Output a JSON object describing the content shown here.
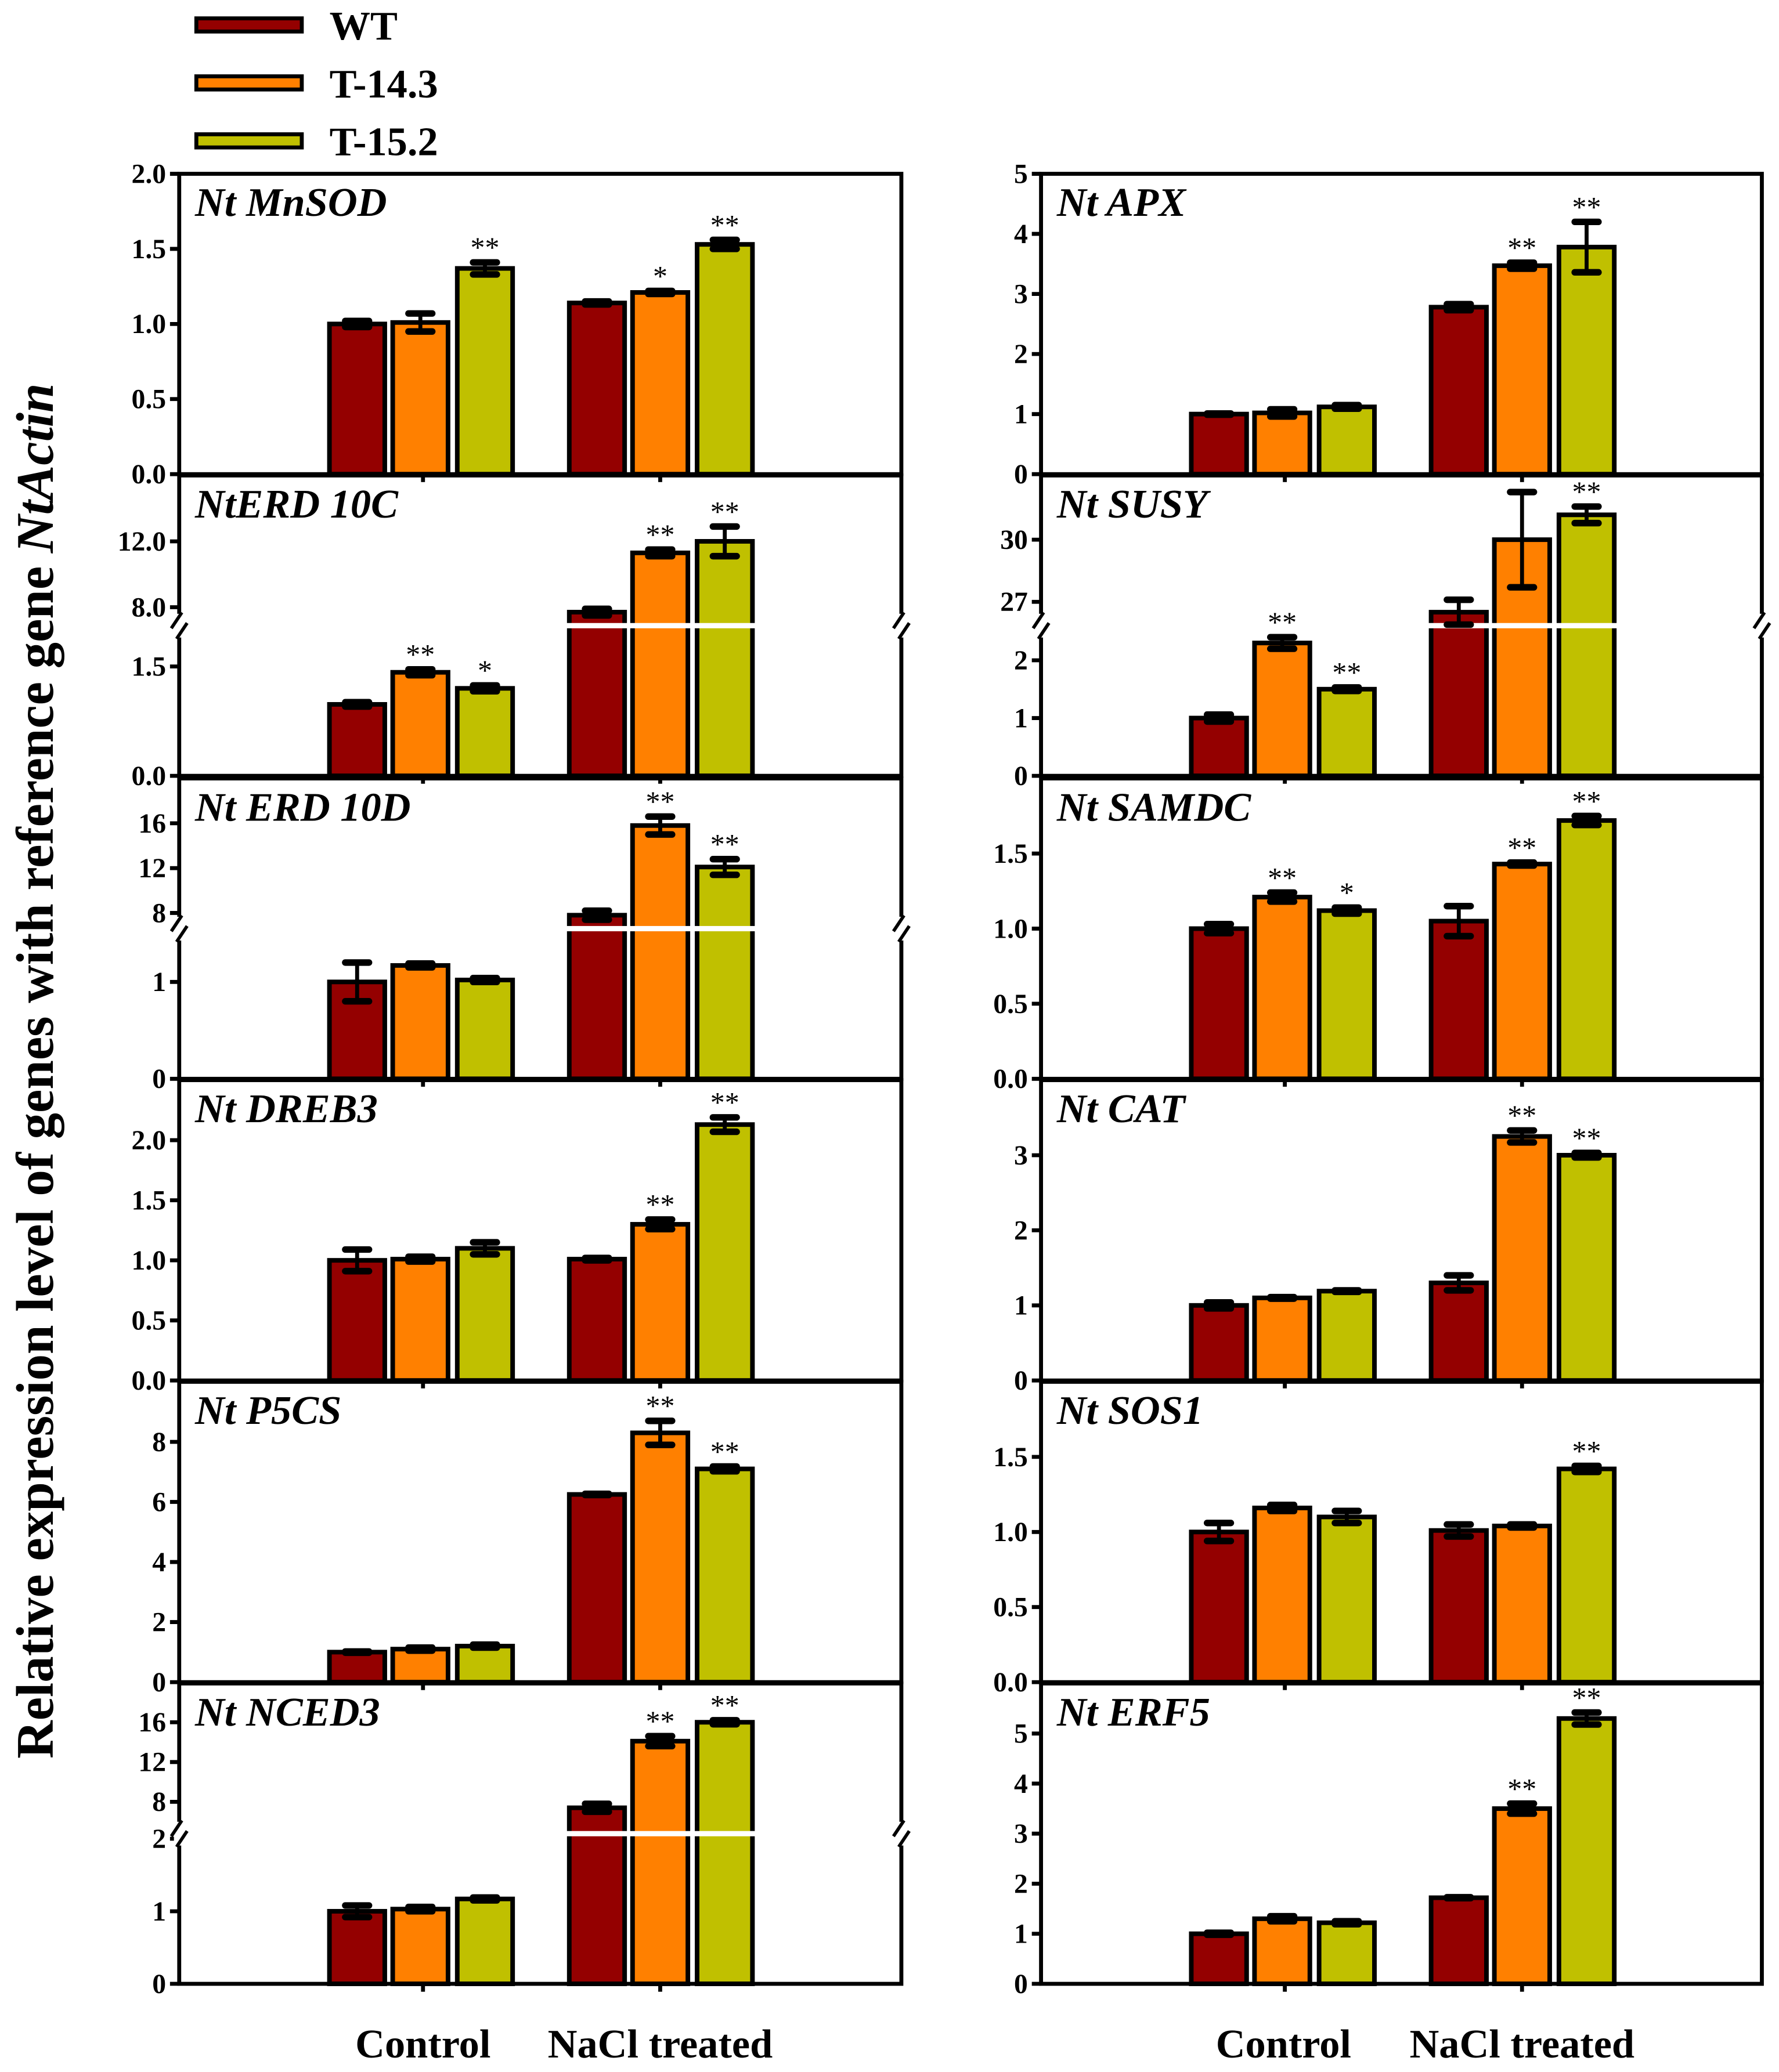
{
  "chart_data": {
    "type": "bar",
    "ylabel": "Relative expression level of genes with reference gene",
    "ylabel_italic": "NtActin",
    "categories": [
      "Control",
      "NaCl treated"
    ],
    "legend": {
      "placement": "top-left",
      "entries": [
        "WT",
        "T-14.3",
        "T-15.2"
      ]
    },
    "series_colors": [
      "#940000",
      "#ff8000",
      "#c0c000"
    ],
    "panels": [
      {
        "title": "Nt MnSOD",
        "column": "left",
        "ylim": [
          0,
          2
        ],
        "ticks": [
          {
            "v": 0,
            "label": "0.0"
          },
          {
            "v": 0.5,
            "label": "0.5"
          },
          {
            "v": 1,
            "label": "1.0"
          },
          {
            "v": 1.5,
            "label": "1.5"
          },
          {
            "v": 2,
            "label": "2.0"
          }
        ],
        "values": [
          [
            1.0,
            1.01,
            1.37
          ],
          [
            1.14,
            1.21,
            1.53
          ]
        ],
        "errors": [
          [
            0.02,
            0.06,
            0.04
          ],
          [
            0.01,
            0.01,
            0.03
          ]
        ],
        "sig": [
          [
            "",
            "",
            "**"
          ],
          [
            "",
            "*",
            "**"
          ]
        ]
      },
      {
        "title": "NtERD 10C",
        "column": "left",
        "axis_break": {
          "lower": [
            0,
            2.06
          ],
          "upper": [
            6.88,
            16
          ]
        },
        "ticks": [
          {
            "v": 0,
            "label": "0.0"
          },
          {
            "v": 1.5,
            "label": "1.5"
          },
          {
            "v": 8,
            "label": "8.0"
          },
          {
            "v": 12,
            "label": "12.0"
          }
        ],
        "values": [
          [
            0.98,
            1.42,
            1.2
          ],
          [
            7.7,
            11.3,
            12.0
          ]
        ],
        "errors": [
          [
            0.03,
            0.04,
            0.04
          ],
          [
            0.2,
            0.2,
            0.9
          ]
        ],
        "sig": [
          [
            "",
            "**",
            "*"
          ],
          [
            "",
            "**",
            "**"
          ]
        ]
      },
      {
        "title": "Nt ERD 10D",
        "column": "left",
        "axis_break": {
          "lower": [
            0,
            1.55
          ],
          "upper": [
            6.6,
            20
          ]
        },
        "ticks": [
          {
            "v": 0,
            "label": "0"
          },
          {
            "v": 1,
            "label": "1"
          },
          {
            "v": 8,
            "label": "8"
          },
          {
            "v": 12,
            "label": "12"
          },
          {
            "v": 16,
            "label": "16"
          }
        ],
        "values": [
          [
            1.0,
            1.17,
            1.02
          ],
          [
            7.8,
            15.8,
            12.1
          ]
        ],
        "errors": [
          [
            0.2,
            0.02,
            0.02
          ],
          [
            0.4,
            0.8,
            0.7
          ]
        ],
        "sig": [
          [
            "",
            "",
            ""
          ],
          [
            "",
            "**",
            "**"
          ]
        ]
      },
      {
        "title": "Nt DREB3",
        "column": "left",
        "ylim": [
          0,
          2.5
        ],
        "ticks": [
          {
            "v": 0,
            "label": "0.0"
          },
          {
            "v": 0.5,
            "label": "0.5"
          },
          {
            "v": 1,
            "label": "1.0"
          },
          {
            "v": 1.5,
            "label": "1.5"
          },
          {
            "v": 2,
            "label": "2.0"
          }
        ],
        "values": [
          [
            1.0,
            1.01,
            1.1
          ],
          [
            1.01,
            1.3,
            2.13
          ]
        ],
        "errors": [
          [
            0.09,
            0.02,
            0.05
          ],
          [
            0.01,
            0.04,
            0.06
          ]
        ],
        "sig": [
          [
            "",
            "",
            ""
          ],
          [
            "",
            "**",
            "**"
          ]
        ]
      },
      {
        "title": "Nt P5CS",
        "column": "left",
        "ylim": [
          0,
          10
        ],
        "ticks": [
          {
            "v": 0,
            "label": "0"
          },
          {
            "v": 2,
            "label": "2"
          },
          {
            "v": 4,
            "label": "4"
          },
          {
            "v": 6,
            "label": "6"
          },
          {
            "v": 8,
            "label": "8"
          }
        ],
        "values": [
          [
            1.0,
            1.1,
            1.2
          ],
          [
            6.25,
            8.3,
            7.1
          ]
        ],
        "errors": [
          [
            0.02,
            0.05,
            0.05
          ],
          [
            0.02,
            0.4,
            0.08
          ]
        ],
        "sig": [
          [
            "",
            "",
            ""
          ],
          [
            "",
            "**",
            "**"
          ]
        ]
      },
      {
        "title": "Nt NCED3",
        "column": "left",
        "axis_break": {
          "lower": [
            0,
            2.07
          ],
          "upper": [
            4.8,
            19.9
          ]
        },
        "ticks": [
          {
            "v": 0,
            "label": "0"
          },
          {
            "v": 1,
            "label": "1"
          },
          {
            "v": 2,
            "label": "2"
          },
          {
            "v": 8,
            "label": "8"
          },
          {
            "v": 12,
            "label": "12"
          },
          {
            "v": 16,
            "label": "16"
          }
        ],
        "values": [
          [
            1.0,
            1.03,
            1.17
          ],
          [
            7.4,
            14.1,
            16.0
          ]
        ],
        "errors": [
          [
            0.08,
            0.03,
            0.02
          ],
          [
            0.4,
            0.5,
            0.2
          ]
        ],
        "sig": [
          [
            "",
            "",
            ""
          ],
          [
            "",
            "**",
            "**"
          ]
        ]
      },
      {
        "title": "Nt APX",
        "column": "right",
        "ylim": [
          0,
          5
        ],
        "ticks": [
          {
            "v": 0,
            "label": "0"
          },
          {
            "v": 1,
            "label": "1"
          },
          {
            "v": 2,
            "label": "2"
          },
          {
            "v": 3,
            "label": "3"
          },
          {
            "v": 4,
            "label": "4"
          },
          {
            "v": 5,
            "label": "5"
          }
        ],
        "values": [
          [
            1.0,
            1.02,
            1.12
          ],
          [
            2.78,
            3.47,
            3.78
          ]
        ],
        "errors": [
          [
            0.01,
            0.06,
            0.03
          ],
          [
            0.05,
            0.05,
            0.42
          ]
        ],
        "sig": [
          [
            "",
            "",
            ""
          ],
          [
            "",
            "**",
            "**"
          ]
        ]
      },
      {
        "title": "Nt SUSY",
        "column": "right",
        "axis_break": {
          "lower": [
            0,
            2.6
          ],
          "upper": [
            25.85,
            33.1
          ]
        },
        "ticks": [
          {
            "v": 0,
            "label": "0"
          },
          {
            "v": 1,
            "label": "1"
          },
          {
            "v": 2,
            "label": "2"
          },
          {
            "v": 27,
            "label": "27"
          },
          {
            "v": 30,
            "label": "30"
          }
        ],
        "values": [
          [
            1.0,
            2.3,
            1.5
          ],
          [
            26.5,
            30.0,
            31.2
          ]
        ],
        "errors": [
          [
            0.06,
            0.1,
            0.03
          ],
          [
            0.6,
            2.3,
            0.4
          ]
        ],
        "sig": [
          [
            "",
            "**",
            "**"
          ],
          [
            "",
            "",
            "**"
          ]
        ]
      },
      {
        "title": "Nt SAMDC",
        "column": "right",
        "ylim": [
          0,
          2
        ],
        "ticks": [
          {
            "v": 0,
            "label": "0.0"
          },
          {
            "v": 0.5,
            "label": "0.5"
          },
          {
            "v": 1,
            "label": "1.0"
          },
          {
            "v": 1.5,
            "label": "1.5"
          }
        ],
        "values": [
          [
            1.0,
            1.21,
            1.12
          ],
          [
            1.05,
            1.43,
            1.72
          ]
        ],
        "errors": [
          [
            0.03,
            0.03,
            0.02
          ],
          [
            0.1,
            0.01,
            0.03
          ]
        ],
        "sig": [
          [
            "",
            "**",
            "*"
          ],
          [
            "",
            "**",
            "**"
          ]
        ]
      },
      {
        "title": "Nt CAT",
        "column": "right",
        "ylim": [
          0,
          4
        ],
        "ticks": [
          {
            "v": 0,
            "label": "0"
          },
          {
            "v": 1,
            "label": "1"
          },
          {
            "v": 2,
            "label": "2"
          },
          {
            "v": 3,
            "label": "3"
          }
        ],
        "values": [
          [
            1.0,
            1.1,
            1.19
          ],
          [
            1.3,
            3.25,
            3.0
          ]
        ],
        "errors": [
          [
            0.04,
            0.01,
            0.01
          ],
          [
            0.1,
            0.08,
            0.03
          ]
        ],
        "sig": [
          [
            "",
            "",
            ""
          ],
          [
            "",
            "**",
            "**"
          ]
        ]
      },
      {
        "title": "Nt SOS1",
        "column": "right",
        "ylim": [
          0,
          2
        ],
        "ticks": [
          {
            "v": 0,
            "label": "0.0"
          },
          {
            "v": 0.5,
            "label": "0.5"
          },
          {
            "v": 1,
            "label": "1.0"
          },
          {
            "v": 1.5,
            "label": "1.5"
          }
        ],
        "values": [
          [
            1.0,
            1.16,
            1.1
          ],
          [
            1.01,
            1.04,
            1.42
          ]
        ],
        "errors": [
          [
            0.06,
            0.02,
            0.04
          ],
          [
            0.04,
            0.01,
            0.02
          ]
        ],
        "sig": [
          [
            "",
            "",
            ""
          ],
          [
            "",
            "",
            "**"
          ]
        ]
      },
      {
        "title": "Nt ERF5",
        "column": "right",
        "ylim": [
          0,
          6
        ],
        "ticks": [
          {
            "v": 0,
            "label": "0"
          },
          {
            "v": 1,
            "label": "1"
          },
          {
            "v": 2,
            "label": "2"
          },
          {
            "v": 3,
            "label": "3"
          },
          {
            "v": 4,
            "label": "4"
          },
          {
            "v": 5,
            "label": "5"
          }
        ],
        "values": [
          [
            1.0,
            1.3,
            1.22
          ],
          [
            1.72,
            3.5,
            5.3
          ]
        ],
        "errors": [
          [
            0.02,
            0.05,
            0.03
          ],
          [
            0.01,
            0.1,
            0.12
          ]
        ],
        "sig": [
          [
            "",
            "",
            ""
          ],
          [
            "",
            "**",
            "**"
          ]
        ]
      }
    ]
  }
}
